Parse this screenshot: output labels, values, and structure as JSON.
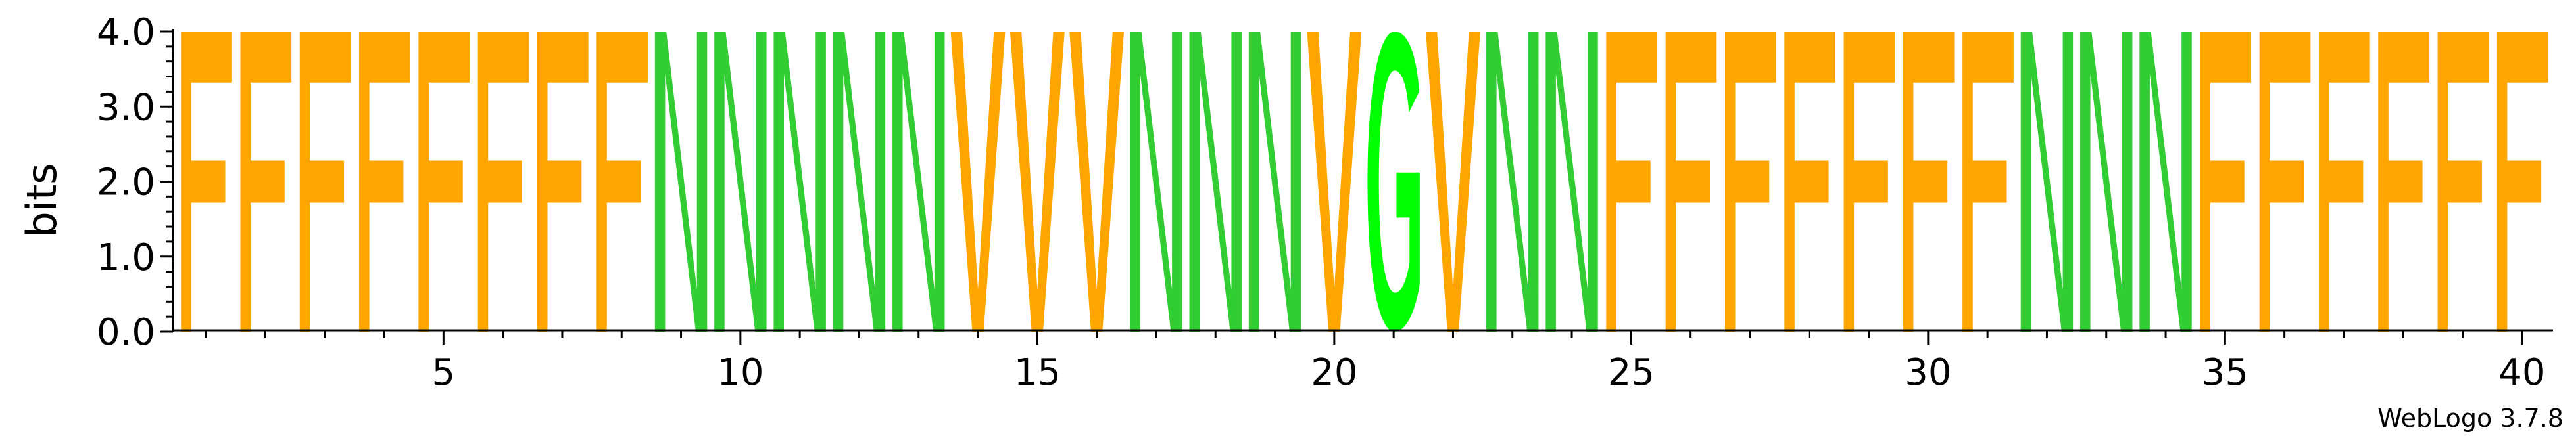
{
  "chart_data": {
    "type": "sequence-logo",
    "ylabel": "bits",
    "ylim": [
      0,
      4.0
    ],
    "yticks": [
      "0.0",
      "1.0",
      "2.0",
      "3.0",
      "4.0"
    ],
    "xlim": [
      1,
      40
    ],
    "xticks": [
      5,
      10,
      15,
      20,
      25,
      30,
      35,
      40
    ],
    "positions": [
      1,
      2,
      3,
      4,
      5,
      6,
      7,
      8,
      9,
      10,
      11,
      12,
      13,
      14,
      15,
      16,
      17,
      18,
      19,
      20,
      21,
      22,
      23,
      24,
      25,
      26,
      27,
      28,
      29,
      30,
      31,
      32,
      33,
      34,
      35,
      36,
      37,
      38,
      39,
      40
    ],
    "letters": [
      "F",
      "F",
      "F",
      "F",
      "F",
      "F",
      "F",
      "F",
      "N",
      "N",
      "N",
      "N",
      "N",
      "V",
      "V",
      "V",
      "N",
      "N",
      "N",
      "V",
      "G",
      "V",
      "N",
      "N",
      "F",
      "F",
      "F",
      "F",
      "F",
      "F",
      "F",
      "N",
      "N",
      "N",
      "F",
      "F",
      "F",
      "F",
      "F",
      "F"
    ],
    "bits": [
      4.0,
      4.0,
      4.0,
      4.0,
      4.0,
      4.0,
      4.0,
      4.0,
      4.0,
      4.0,
      4.0,
      4.0,
      4.0,
      4.0,
      4.0,
      4.0,
      4.0,
      4.0,
      4.0,
      4.0,
      4.0,
      4.0,
      4.0,
      4.0,
      4.0,
      4.0,
      4.0,
      4.0,
      4.0,
      4.0,
      4.0,
      4.0,
      4.0,
      4.0,
      4.0,
      4.0,
      4.0,
      4.0,
      4.0,
      4.0
    ],
    "colors": {
      "F": "#ffa500",
      "V": "#ffa500",
      "N": "#32cd32",
      "G": "#00ff00"
    },
    "credit": "WebLogo 3.7.8"
  }
}
